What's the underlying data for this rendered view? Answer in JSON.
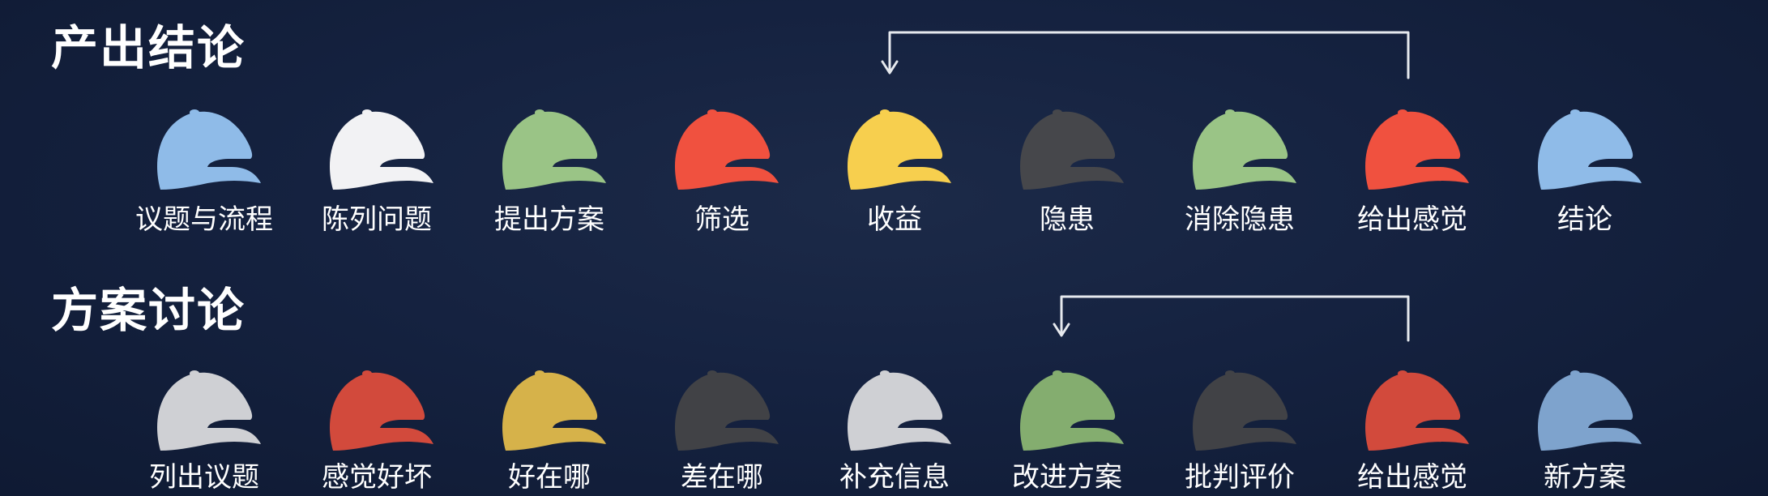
{
  "sections": [
    {
      "title": "产出结论",
      "hats": [
        {
          "label": "议题与流程",
          "color": "#8fbbe8",
          "icon": "cap-icon-blue"
        },
        {
          "label": "陈列问题",
          "color": "#f2f2f4",
          "icon": "cap-icon-white"
        },
        {
          "label": "提出方案",
          "color": "#9ac486",
          "icon": "cap-icon-green"
        },
        {
          "label": "筛选",
          "color": "#f0513f",
          "icon": "cap-icon-red"
        },
        {
          "label": "收益",
          "color": "#f7cf4e",
          "icon": "cap-icon-yellow"
        },
        {
          "label": "隐患",
          "color": "#46474b",
          "icon": "cap-icon-black"
        },
        {
          "label": "消除隐患",
          "color": "#9ac486",
          "icon": "cap-icon-green"
        },
        {
          "label": "给出感觉",
          "color": "#f0513f",
          "icon": "cap-icon-red"
        },
        {
          "label": "结论",
          "color": "#8fbbe8",
          "icon": "cap-icon-blue"
        }
      ]
    },
    {
      "title": "方案讨论",
      "hats": [
        {
          "label": "列出议题",
          "color": "#cfd0d4",
          "icon": "cap-icon-white"
        },
        {
          "label": "感觉好坏",
          "color": "#d24a3c",
          "icon": "cap-icon-red"
        },
        {
          "label": "好在哪",
          "color": "#d6b24a",
          "icon": "cap-icon-yellow"
        },
        {
          "label": "差在哪",
          "color": "#414246",
          "icon": "cap-icon-black"
        },
        {
          "label": "补充信息",
          "color": "#cfd0d4",
          "icon": "cap-icon-white"
        },
        {
          "label": "改进方案",
          "color": "#84ad6f",
          "icon": "cap-icon-green"
        },
        {
          "label": "批判评价",
          "color": "#414246",
          "icon": "cap-icon-black"
        },
        {
          "label": "给出感觉",
          "color": "#d24a3c",
          "icon": "cap-icon-red"
        },
        {
          "label": "新方案",
          "color": "#7ea3cd",
          "icon": "cap-icon-blue"
        }
      ]
    }
  ],
  "colors": {
    "background": "#152240",
    "connector": "#e6e9ee"
  }
}
